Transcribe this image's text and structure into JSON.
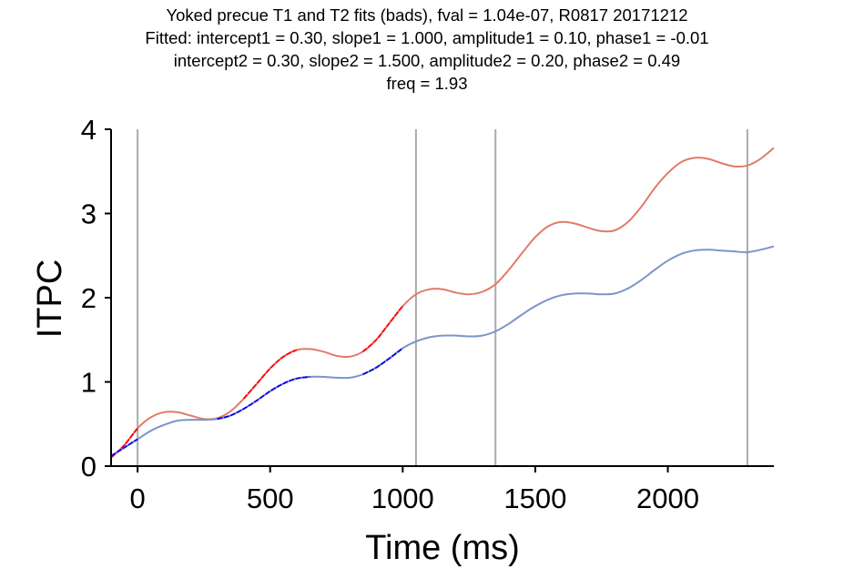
{
  "title": {
    "lines": [
      "Yoked precue T1 and T2 fits (bads), fval = 1.04e-07, R0817 20171212",
      "Fitted: intercept1 = 0.30, slope1 = 1.000, amplitude1 = 0.10, phase1 = -0.01",
      "intercept2 = 0.30, slope2 = 1.500, amplitude2 = 0.20, phase2 = 0.49",
      "freq = 1.93"
    ]
  },
  "chart_data": {
    "type": "line",
    "xlabel": "Time (ms)",
    "ylabel": "ITPC",
    "xlim": [
      -100,
      2400
    ],
    "ylim": [
      0,
      4
    ],
    "xticks": [
      0,
      500,
      1000,
      1500,
      2000
    ],
    "xtick_labels": [
      "0",
      "500",
      "1000",
      "1500",
      "2000"
    ],
    "yticks": [
      0,
      1,
      2,
      3,
      4
    ],
    "ytick_labels": [
      "0",
      "1",
      "2",
      "3",
      "4"
    ],
    "grid": false,
    "event_lines_x": [
      0,
      1050,
      1350,
      2300
    ],
    "event_line_color": "#aaaaaa",
    "x_step_ms": 50,
    "series": [
      {
        "fit_color": "#e07b69",
        "data_color": "#ff0000",
        "data_segments_x": [
          [
            -100,
            0
          ],
          [
            400,
            600
          ],
          [
            850,
            1000
          ]
        ],
        "x": [
          -100,
          -50,
          0,
          50,
          100,
          150,
          200,
          250,
          300,
          350,
          400,
          450,
          500,
          550,
          600,
          650,
          700,
          750,
          800,
          850,
          900,
          950,
          1000,
          1050,
          1100,
          1150,
          1200,
          1250,
          1300,
          1350,
          1400,
          1450,
          1500,
          1550,
          1600,
          1650,
          1700,
          1750,
          1800,
          1850,
          1900,
          1950,
          2000,
          2050,
          2100,
          2150,
          2200,
          2250,
          2300,
          2350,
          2400
        ],
        "y": [
          0.1,
          0.25,
          0.45,
          0.58,
          0.64,
          0.64,
          0.6,
          0.56,
          0.57,
          0.65,
          0.8,
          0.98,
          1.16,
          1.3,
          1.38,
          1.39,
          1.36,
          1.31,
          1.3,
          1.36,
          1.5,
          1.7,
          1.9,
          2.04,
          2.1,
          2.1,
          2.06,
          2.04,
          2.07,
          2.16,
          2.33,
          2.53,
          2.72,
          2.85,
          2.9,
          2.88,
          2.83,
          2.79,
          2.8,
          2.9,
          3.08,
          3.3,
          3.48,
          3.61,
          3.66,
          3.65,
          3.6,
          3.56,
          3.57,
          3.65,
          3.78
        ]
      },
      {
        "fit_color": "#7a96c8",
        "data_color": "#0000ee",
        "data_segments_x": [
          [
            -100,
            0
          ],
          [
            300,
            650
          ],
          [
            850,
            1000
          ]
        ],
        "x": [
          -100,
          -50,
          0,
          50,
          100,
          150,
          200,
          250,
          300,
          350,
          400,
          450,
          500,
          550,
          600,
          650,
          700,
          750,
          800,
          850,
          900,
          950,
          1000,
          1050,
          1100,
          1150,
          1200,
          1250,
          1300,
          1350,
          1400,
          1450,
          1500,
          1550,
          1600,
          1650,
          1700,
          1750,
          1800,
          1850,
          1900,
          1950,
          2000,
          2050,
          2100,
          2150,
          2200,
          2250,
          2300,
          2350,
          2400
        ],
        "y": [
          0.12,
          0.22,
          0.32,
          0.42,
          0.49,
          0.54,
          0.55,
          0.55,
          0.56,
          0.6,
          0.68,
          0.78,
          0.89,
          0.98,
          1.04,
          1.06,
          1.06,
          1.05,
          1.05,
          1.09,
          1.17,
          1.28,
          1.4,
          1.48,
          1.53,
          1.55,
          1.55,
          1.54,
          1.55,
          1.6,
          1.69,
          1.8,
          1.9,
          1.98,
          2.03,
          2.05,
          2.05,
          2.04,
          2.05,
          2.11,
          2.21,
          2.33,
          2.44,
          2.52,
          2.56,
          2.57,
          2.56,
          2.55,
          2.54,
          2.57,
          2.61
        ]
      }
    ]
  }
}
